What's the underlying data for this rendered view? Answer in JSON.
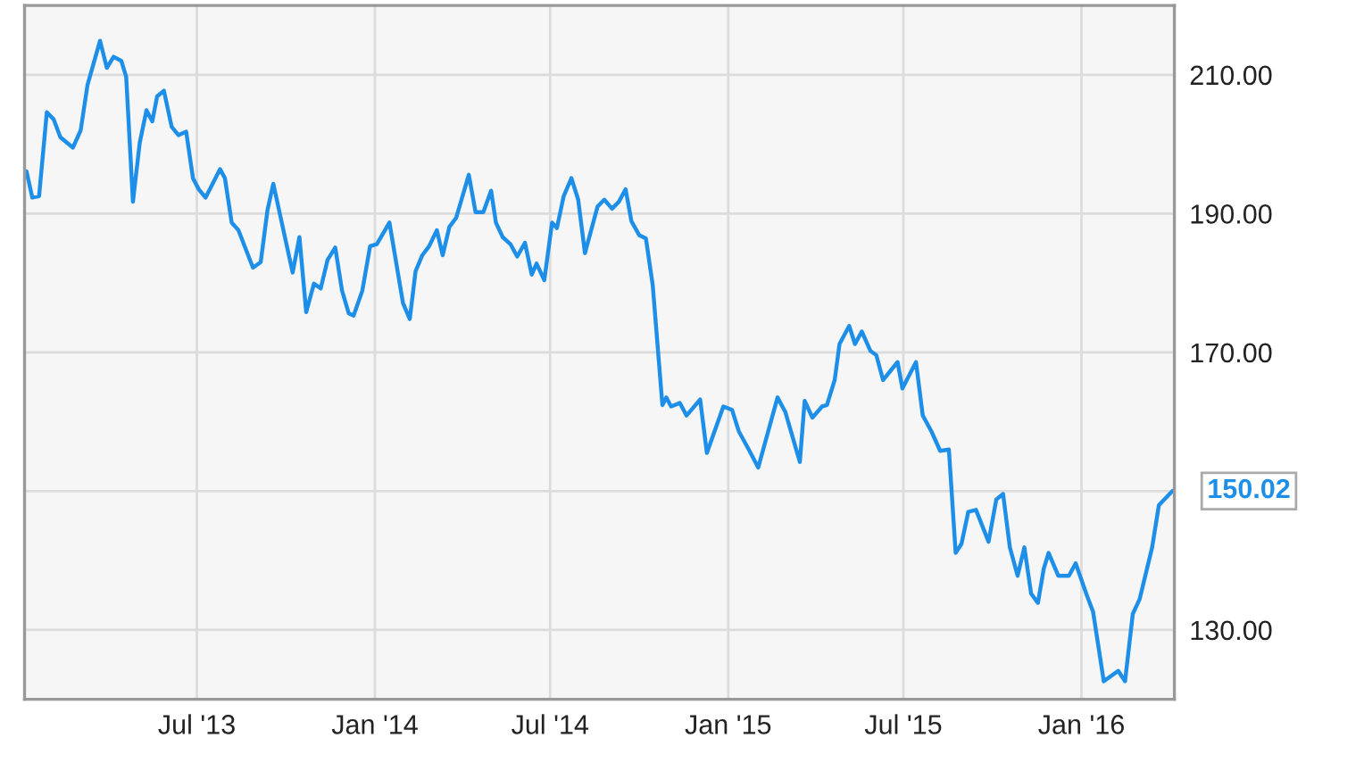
{
  "chart_data": {
    "type": "line",
    "x": [
      "2013-01-06",
      "2013-01-12",
      "2013-01-19",
      "2013-01-27",
      "2013-02-03",
      "2013-02-10",
      "2013-02-23",
      "2013-03-03",
      "2013-03-10",
      "2013-03-23",
      "2013-03-30",
      "2013-04-06",
      "2013-04-14",
      "2013-04-19",
      "2013-04-26",
      "2013-05-03",
      "2013-05-10",
      "2013-05-16",
      "2013-05-21",
      "2013-05-28",
      "2013-06-05",
      "2013-06-12",
      "2013-06-20",
      "2013-06-27",
      "2013-07-03",
      "2013-07-10",
      "2013-07-25",
      "2013-07-30",
      "2013-08-06",
      "2013-08-13",
      "2013-08-28",
      "2013-09-05",
      "2013-09-12",
      "2013-09-18",
      "2013-10-08",
      "2013-10-15",
      "2013-10-22",
      "2013-10-30",
      "2013-11-06",
      "2013-11-13",
      "2013-11-21",
      "2013-11-28",
      "2013-12-05",
      "2013-12-10",
      "2013-12-19",
      "2013-12-27",
      "2014-01-03",
      "2014-01-16",
      "2014-01-30",
      "2014-02-06",
      "2014-02-12",
      "2014-02-19",
      "2014-02-26",
      "2014-03-06",
      "2014-03-12",
      "2014-03-19",
      "2014-03-26",
      "2014-04-08",
      "2014-04-15",
      "2014-04-23",
      "2014-05-01",
      "2014-05-06",
      "2014-05-13",
      "2014-05-21",
      "2014-05-28",
      "2014-06-05",
      "2014-06-12",
      "2014-06-17",
      "2014-06-25",
      "2014-07-03",
      "2014-07-08",
      "2014-07-15",
      "2014-07-23",
      "2014-07-30",
      "2014-08-06",
      "2014-08-19",
      "2014-08-26",
      "2014-09-03",
      "2014-09-10",
      "2014-09-17",
      "2014-09-23",
      "2014-10-01",
      "2014-10-08",
      "2014-10-15",
      "2014-10-25",
      "2014-10-29",
      "2014-11-03",
      "2014-11-12",
      "2014-11-19",
      "2014-12-03",
      "2014-12-10",
      "2014-12-27",
      "2015-01-05",
      "2015-01-12",
      "2015-01-23",
      "2015-02-01",
      "2015-02-21",
      "2015-03-01",
      "2015-03-16",
      "2015-03-21",
      "2015-03-29",
      "2015-04-08",
      "2015-04-13",
      "2015-04-21",
      "2015-04-26",
      "2015-05-06",
      "2015-05-12",
      "2015-05-19",
      "2015-05-28",
      "2015-06-03",
      "2015-06-10",
      "2015-06-25",
      "2015-06-30",
      "2015-07-14",
      "2015-07-21",
      "2015-07-30",
      "2015-08-08",
      "2015-08-17",
      "2015-08-24",
      "2015-08-30",
      "2015-09-06",
      "2015-09-14",
      "2015-09-27",
      "2015-10-05",
      "2015-10-12",
      "2015-10-19",
      "2015-10-27",
      "2015-11-03",
      "2015-11-10",
      "2015-11-17",
      "2015-11-23",
      "2015-11-28",
      "2015-12-08",
      "2015-12-19",
      "2015-12-26",
      "2016-01-06",
      "2016-01-13",
      "2016-01-24",
      "2016-02-08",
      "2016-02-15",
      "2016-02-23",
      "2016-03-01",
      "2016-03-14",
      "2016-03-21",
      "2016-04-04"
    ],
    "series": [
      {
        "color": "#1e8fe8",
        "values": [
          196.1,
          192.3,
          192.5,
          204.6,
          203.6,
          201.0,
          199.5,
          202.0,
          208.5,
          214.9,
          211.0,
          212.6,
          212.0,
          209.7,
          191.7,
          200.2,
          204.9,
          203.3,
          206.9,
          207.7,
          202.5,
          201.3,
          201.8,
          195.1,
          193.5,
          192.3,
          196.4,
          195.1,
          188.7,
          187.6,
          182.2,
          183.0,
          190.5,
          194.3,
          181.5,
          186.6,
          175.8,
          179.9,
          179.2,
          183.3,
          185.1,
          178.9,
          175.6,
          175.3,
          178.9,
          185.3,
          185.6,
          188.7,
          177.1,
          174.8,
          181.7,
          184.0,
          185.3,
          187.6,
          184.0,
          188.1,
          189.4,
          195.6,
          190.2,
          190.2,
          193.3,
          188.7,
          186.6,
          185.6,
          183.8,
          185.8,
          181.2,
          182.8,
          180.4,
          188.7,
          187.9,
          192.5,
          195.1,
          192.0,
          184.3,
          191.0,
          192.0,
          190.7,
          191.7,
          193.5,
          188.9,
          186.9,
          186.4,
          179.7,
          162.4,
          163.5,
          162.2,
          162.7,
          160.9,
          163.2,
          155.5,
          162.2,
          161.7,
          158.6,
          155.8,
          153.4,
          163.5,
          161.4,
          154.2,
          163.0,
          160.6,
          162.2,
          162.4,
          166.0,
          171.2,
          173.8,
          171.2,
          173.0,
          170.2,
          169.6,
          166.0,
          168.6,
          164.8,
          168.6,
          160.9,
          158.6,
          155.8,
          156.0,
          141.1,
          142.4,
          147.0,
          147.3,
          142.7,
          148.8,
          149.6,
          141.9,
          137.8,
          141.9,
          135.2,
          133.9,
          138.8,
          141.1,
          137.8,
          137.8,
          139.6,
          135.2,
          132.6,
          122.6,
          124.1,
          122.6,
          132.3,
          134.4,
          141.9,
          148.0,
          150.02
        ]
      }
    ],
    "xlim": [
      "2013-01-04",
      "2016-04-06"
    ],
    "xticks": [
      {
        "value": "2013-07-01",
        "label": "Jul '13"
      },
      {
        "value": "2014-01-01",
        "label": "Jan '14"
      },
      {
        "value": "2014-07-01",
        "label": "Jul '14"
      },
      {
        "value": "2015-01-01",
        "label": "Jan '15"
      },
      {
        "value": "2015-07-01",
        "label": "Jul '15"
      },
      {
        "value": "2016-01-01",
        "label": "Jan '16"
      }
    ],
    "ylim": [
      120,
      220
    ],
    "yticks": [
      {
        "value": 130,
        "label": "130.00"
      },
      {
        "value": 150,
        "label": null
      },
      {
        "value": 170,
        "label": "170.00"
      },
      {
        "value": 190,
        "label": "190.00"
      },
      {
        "value": 210,
        "label": "210.00"
      }
    ],
    "annotations": [
      {
        "text": "150.02",
        "x": "2016-04-04",
        "y": 150.02
      }
    ],
    "grid": true,
    "legend": false,
    "marker": "none",
    "line_style": "solid"
  }
}
